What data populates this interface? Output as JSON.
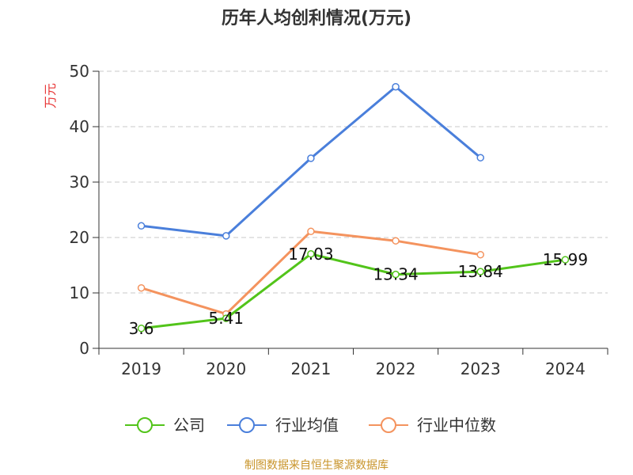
{
  "chart_data": {
    "type": "line",
    "title": "历年人均创利情况(万元)",
    "ylabel": "万元",
    "xlabel": "",
    "categories": [
      "2019",
      "2020",
      "2021",
      "2022",
      "2023",
      "2024"
    ],
    "ylim": [
      0,
      50
    ],
    "yticks": [
      0,
      10,
      20,
      30,
      40,
      50
    ],
    "grid": true,
    "legend_position": "bottom",
    "series": [
      {
        "name": "公司",
        "color": "#52c41a",
        "values": [
          3.6,
          5.41,
          17.03,
          13.34,
          13.84,
          15.99
        ],
        "labels": [
          "3.6",
          "5.41",
          "17.03",
          "13.34",
          "13.84",
          "15.99"
        ]
      },
      {
        "name": "行业均值",
        "color": "#4a7fdb",
        "values": [
          22.1,
          20.3,
          34.3,
          47.2,
          34.4,
          null
        ]
      },
      {
        "name": "行业中位数",
        "color": "#f4935e",
        "values": [
          10.9,
          6.2,
          21.1,
          19.4,
          16.9,
          null
        ]
      }
    ]
  },
  "source_text": "制图数据来自恒生聚源数据库"
}
